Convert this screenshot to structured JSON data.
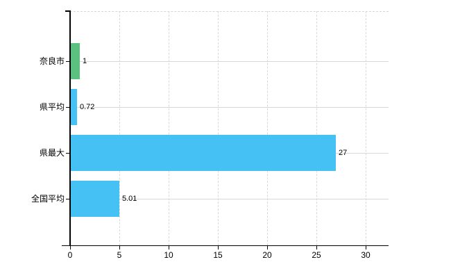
{
  "chart_data": {
    "type": "bar",
    "orientation": "horizontal",
    "categories": [
      "奈良市",
      "県平均",
      "県最大",
      "全国平均"
    ],
    "values": [
      1,
      0.72,
      27,
      5.01
    ],
    "value_labels": [
      "1",
      "0.72",
      "27",
      "5.01"
    ],
    "bar_colors": [
      "#5cc17e",
      "#45c2f3",
      "#45c2f3",
      "#45c2f3"
    ],
    "x_ticks": [
      0,
      5,
      10,
      15,
      20,
      25,
      30
    ],
    "x_tick_labels": [
      "0",
      "5",
      "10",
      "15",
      "20",
      "25",
      "30"
    ],
    "xlim": [
      0,
      32.3
    ],
    "grid": true,
    "grid_style": "dashed-vertical, solid-horizontal-at-category-centers",
    "legend": false,
    "colors": {
      "axis": "#000000",
      "grid": "#d9d9d9",
      "text": "#000000",
      "background": "#ffffff"
    }
  }
}
